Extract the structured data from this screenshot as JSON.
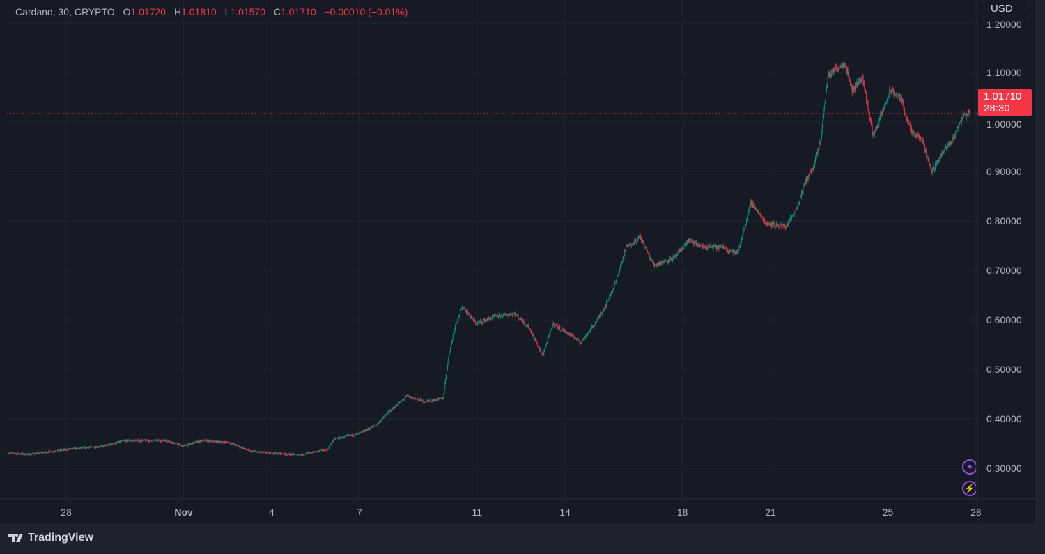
{
  "header": {
    "symbol": "Cardano, 30, CRYPTO",
    "open_label": "O",
    "open": "1.01720",
    "high_label": "H",
    "high": "1.01810",
    "low_label": "L",
    "low": "1.01570",
    "close_label": "C",
    "close": "1.01710",
    "change": "−0.00010 (−0.01%)"
  },
  "currency_button": "USD",
  "last_price": {
    "value": "1.01710",
    "countdown": "28:30"
  },
  "footer": {
    "brand": "TradingView"
  },
  "colors": {
    "up": "#089981",
    "down": "#f23645",
    "background": "#161a25",
    "grid": "#1f2432",
    "accent": "#9c4de8"
  },
  "chart_data": {
    "type": "candlestick",
    "title": "Cardano, 30, CRYPTO",
    "interval_minutes": 30,
    "x_unit": "days since Oct 28",
    "y_ticks": [
      "0.30000",
      "0.40000",
      "0.50000",
      "0.60000",
      "0.70000",
      "0.80000",
      "0.90000",
      "1.00000",
      "1.10000",
      "1.20000"
    ],
    "y_tick_values": [
      0.3,
      0.4,
      0.5,
      0.6,
      0.7,
      0.8,
      0.9,
      1.0,
      1.1,
      1.2
    ],
    "ylim": [
      0.24,
      1.2
    ],
    "x_ticks": [
      {
        "t": 0,
        "label": "28"
      },
      {
        "t": 4,
        "label": "Nov"
      },
      {
        "t": 7,
        "label": "4"
      },
      {
        "t": 10,
        "label": "7"
      },
      {
        "t": 14,
        "label": "11"
      },
      {
        "t": 17,
        "label": "14"
      },
      {
        "t": 21,
        "label": "18"
      },
      {
        "t": 24,
        "label": "21"
      },
      {
        "t": 28,
        "label": "25"
      },
      {
        "t": 31,
        "label": "28"
      }
    ],
    "xlim": [
      -2.02,
      31.05
    ],
    "last_close": 1.0171,
    "price_path": [
      [
        -2.01,
        0.331
      ],
      [
        -1.3,
        0.328
      ],
      [
        0,
        0.338
      ],
      [
        1.3,
        0.345
      ],
      [
        2.01,
        0.356
      ],
      [
        3.44,
        0.356
      ],
      [
        3.96,
        0.345
      ],
      [
        4.62,
        0.356
      ],
      [
        5.57,
        0.352
      ],
      [
        6.28,
        0.334
      ],
      [
        6.97,
        0.331
      ],
      [
        7.94,
        0.327
      ],
      [
        8.89,
        0.338
      ],
      [
        9.12,
        0.359
      ],
      [
        9.98,
        0.37
      ],
      [
        10.55,
        0.387
      ],
      [
        11.02,
        0.415
      ],
      [
        11.61,
        0.446
      ],
      [
        12.2,
        0.435
      ],
      [
        12.84,
        0.441
      ],
      [
        13.03,
        0.528
      ],
      [
        13.27,
        0.592
      ],
      [
        13.51,
        0.627
      ],
      [
        13.96,
        0.592
      ],
      [
        14.57,
        0.606
      ],
      [
        15.28,
        0.613
      ],
      [
        15.76,
        0.585
      ],
      [
        16.23,
        0.528
      ],
      [
        16.59,
        0.592
      ],
      [
        16.97,
        0.578
      ],
      [
        17.54,
        0.555
      ],
      [
        18.01,
        0.592
      ],
      [
        18.36,
        0.627
      ],
      [
        18.72,
        0.676
      ],
      [
        19.08,
        0.746
      ],
      [
        19.55,
        0.768
      ],
      [
        20.02,
        0.711
      ],
      [
        20.73,
        0.725
      ],
      [
        21.21,
        0.761
      ],
      [
        21.68,
        0.747
      ],
      [
        22.39,
        0.747
      ],
      [
        22.87,
        0.733
      ],
      [
        23.34,
        0.838
      ],
      [
        23.82,
        0.796
      ],
      [
        24.53,
        0.789
      ],
      [
        24.88,
        0.824
      ],
      [
        25.24,
        0.887
      ],
      [
        25.47,
        0.908
      ],
      [
        25.71,
        0.965
      ],
      [
        25.95,
        1.092
      ],
      [
        26.18,
        1.106
      ],
      [
        26.54,
        1.12
      ],
      [
        26.78,
        1.063
      ],
      [
        27.13,
        1.092
      ],
      [
        27.49,
        0.972
      ],
      [
        27.73,
        1.007
      ],
      [
        28.08,
        1.063
      ],
      [
        28.44,
        1.049
      ],
      [
        28.79,
        0.979
      ],
      [
        29.15,
        0.965
      ],
      [
        29.5,
        0.901
      ],
      [
        29.86,
        0.937
      ],
      [
        30.21,
        0.965
      ],
      [
        30.57,
        1.014
      ],
      [
        30.81,
        1.017
      ]
    ]
  }
}
